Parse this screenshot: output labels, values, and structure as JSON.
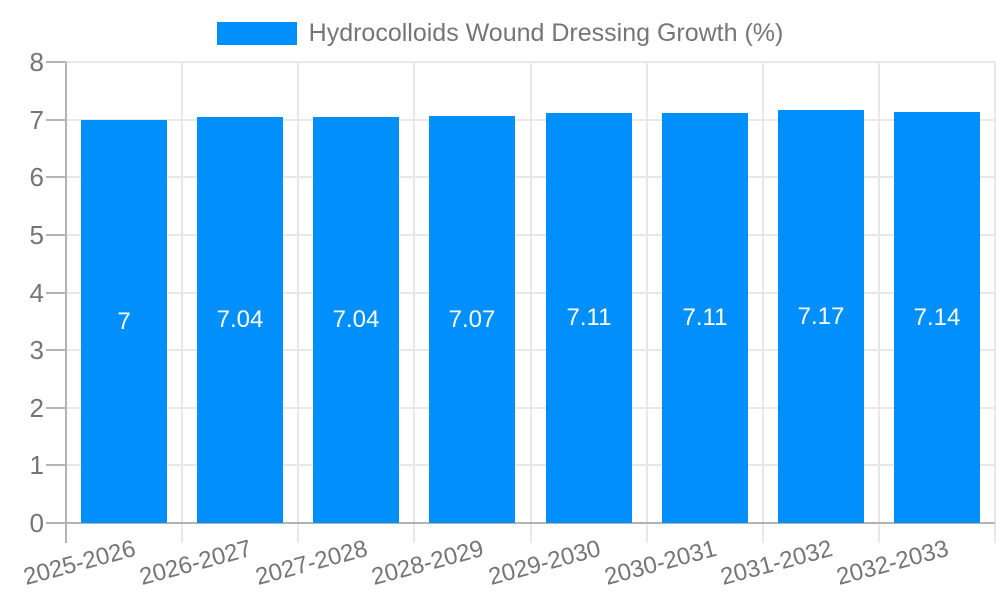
{
  "chart_data": {
    "type": "bar",
    "title": "Hydrocolloids Wound Dressing Growth (%)",
    "legend": {
      "label": "Hydrocolloids Wound Dressing Growth (%)",
      "position": "top"
    },
    "categories": [
      "2025-2026",
      "2026-2027",
      "2027-2028",
      "2028-2029",
      "2029-2030",
      "2030-2031",
      "2031-2032",
      "2032-2033"
    ],
    "series": [
      {
        "name": "Hydrocolloids Wound Dressing Growth (%)",
        "values": [
          7,
          7.04,
          7.04,
          7.07,
          7.11,
          7.11,
          7.17,
          7.14
        ],
        "value_labels": [
          "7",
          "7.04",
          "7.04",
          "7.07",
          "7.11",
          "7.11",
          "7.17",
          "7.14"
        ]
      }
    ],
    "xlabel": "",
    "ylabel": "",
    "ylim": [
      0,
      8
    ],
    "yticks": [
      "0",
      "1",
      "2",
      "3",
      "4",
      "5",
      "6",
      "7",
      "8"
    ],
    "grid": true,
    "colors": {
      "bar": "#008FFB",
      "bar_label": "#ffffff",
      "axis_text": "#757575",
      "grid_line": "#e8e8e8",
      "axis_line": "#b3b3b3",
      "legend_text": "#757575"
    }
  }
}
